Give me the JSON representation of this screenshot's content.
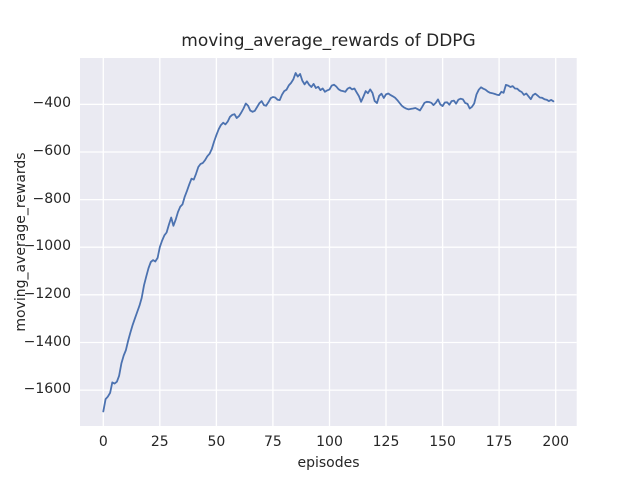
{
  "figure": {
    "title": "moving_average_rewards of DDPG",
    "xlabel": "episodes",
    "ylabel": "moving_average_rewards"
  },
  "chart_data": {
    "type": "line",
    "title": "moving_average_rewards of DDPG",
    "xlabel": "episodes",
    "ylabel": "moving_average_rewards",
    "style": "seaborn-darkgrid",
    "grid": true,
    "legend": false,
    "xlim": [
      -10.3,
      209.3
    ],
    "ylim": [
      -1751,
      -205
    ],
    "x_ticks": [
      0,
      25,
      50,
      75,
      100,
      125,
      150,
      175,
      200
    ],
    "x_tick_labels": [
      "0",
      "25",
      "50",
      "75",
      "100",
      "125",
      "150",
      "175",
      "200"
    ],
    "y_ticks": [
      -400,
      -600,
      -800,
      -1000,
      -1200,
      -1400,
      -1600
    ],
    "y_tick_labels": [
      "−400",
      "−600",
      "−800",
      "−1000",
      "−1200",
      "−1400",
      "−1600"
    ],
    "colors": {
      "line": "#4C72B0",
      "plot_background": "#EAEAF2",
      "grid": "#FFFFFF",
      "figure_background": "#FFFFFF",
      "text": "#262626"
    },
    "series": [
      {
        "name": "moving_average_rewards",
        "x_start": 0,
        "x_step": 1,
        "values": [
          -1690,
          -1638,
          -1628,
          -1612,
          -1568,
          -1573,
          -1565,
          -1540,
          -1488,
          -1455,
          -1432,
          -1392,
          -1358,
          -1326,
          -1298,
          -1272,
          -1245,
          -1213,
          -1160,
          -1122,
          -1088,
          -1062,
          -1054,
          -1060,
          -1045,
          -1000,
          -972,
          -950,
          -938,
          -905,
          -875,
          -910,
          -884,
          -853,
          -830,
          -820,
          -788,
          -763,
          -737,
          -712,
          -716,
          -692,
          -663,
          -650,
          -646,
          -634,
          -618,
          -607,
          -586,
          -556,
          -529,
          -504,
          -487,
          -477,
          -484,
          -472,
          -452,
          -444,
          -441,
          -457,
          -449,
          -434,
          -417,
          -396,
          -406,
          -426,
          -431,
          -427,
          -411,
          -395,
          -386,
          -403,
          -406,
          -391,
          -374,
          -369,
          -371,
          -380,
          -382,
          -359,
          -344,
          -338,
          -320,
          -310,
          -295,
          -268,
          -283,
          -272,
          -300,
          -316,
          -303,
          -317,
          -327,
          -314,
          -331,
          -326,
          -340,
          -333,
          -347,
          -341,
          -337,
          -321,
          -317,
          -325,
          -336,
          -342,
          -344,
          -347,
          -334,
          -329,
          -337,
          -333,
          -349,
          -365,
          -389,
          -367,
          -344,
          -353,
          -337,
          -352,
          -386,
          -394,
          -364,
          -355,
          -373,
          -358,
          -354,
          -361,
          -366,
          -372,
          -382,
          -394,
          -406,
          -413,
          -418,
          -421,
          -419,
          -417,
          -415,
          -420,
          -425,
          -410,
          -393,
          -389,
          -390,
          -393,
          -403,
          -393,
          -379,
          -400,
          -407,
          -392,
          -391,
          -401,
          -386,
          -384,
          -397,
          -380,
          -376,
          -379,
          -394,
          -398,
          -417,
          -410,
          -396,
          -358,
          -338,
          -328,
          -334,
          -338,
          -346,
          -351,
          -353,
          -356,
          -359,
          -361,
          -347,
          -351,
          -318,
          -321,
          -327,
          -323,
          -333,
          -334,
          -343,
          -348,
          -360,
          -354,
          -366,
          -378,
          -361,
          -355,
          -363,
          -371,
          -372,
          -378,
          -380,
          -386,
          -381,
          -387
        ]
      }
    ]
  }
}
